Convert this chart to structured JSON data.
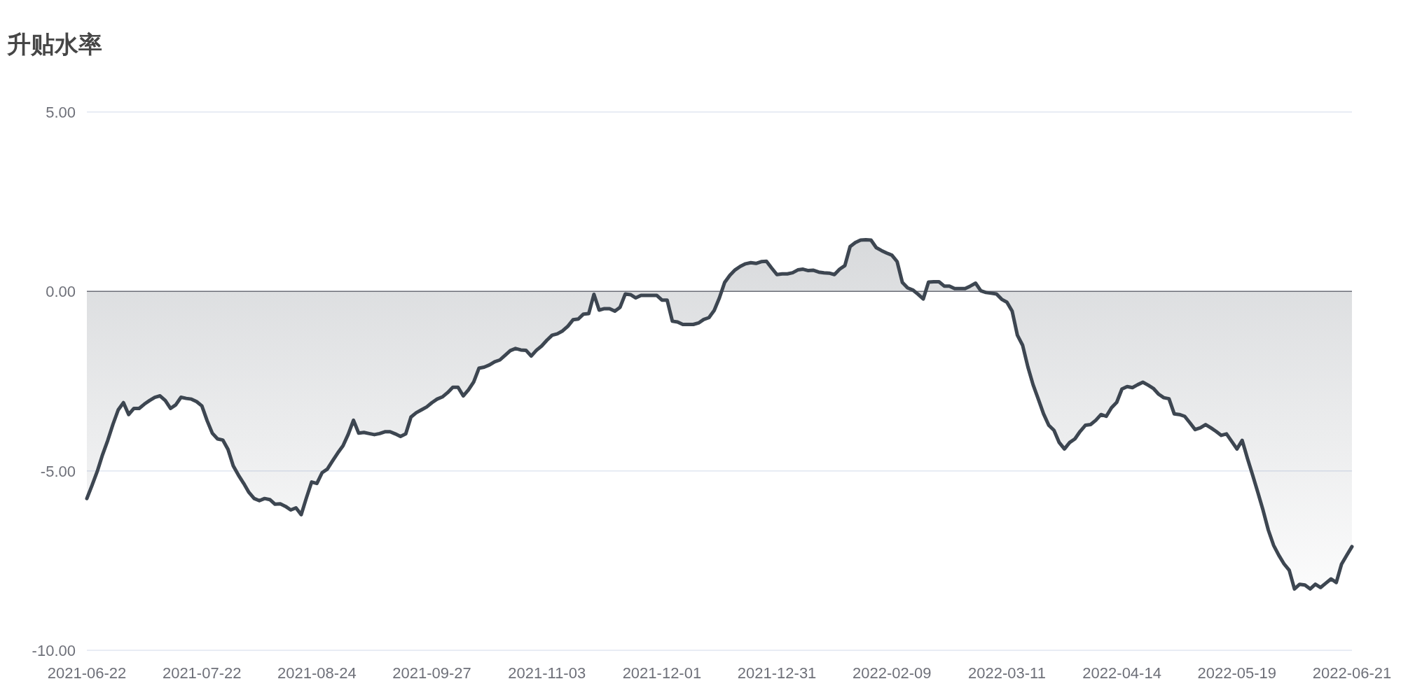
{
  "chart_data": {
    "type": "area",
    "title": "升贴水率",
    "categories": [
      "2021-06-22",
      null,
      null,
      null,
      null,
      null,
      null,
      null,
      null,
      null,
      null,
      null,
      null,
      null,
      null,
      null,
      null,
      null,
      null,
      null,
      null,
      null,
      "2021-07-22",
      null,
      null,
      null,
      null,
      null,
      null,
      null,
      null,
      null,
      null,
      null,
      null,
      null,
      null,
      null,
      null,
      null,
      null,
      null,
      null,
      null,
      "2021-08-24",
      null,
      null,
      null,
      null,
      null,
      null,
      null,
      null,
      null,
      null,
      null,
      null,
      null,
      null,
      null,
      null,
      null,
      null,
      null,
      null,
      null,
      "2021-09-27",
      null,
      null,
      null,
      null,
      null,
      null,
      null,
      null,
      null,
      null,
      null,
      null,
      null,
      null,
      null,
      null,
      null,
      null,
      null,
      null,
      null,
      "2021-11-03",
      null,
      null,
      null,
      null,
      null,
      null,
      null,
      null,
      null,
      null,
      null,
      null,
      null,
      null,
      null,
      null,
      null,
      null,
      null,
      null,
      null,
      "2021-12-01",
      null,
      null,
      null,
      null,
      null,
      null,
      null,
      null,
      null,
      null,
      null,
      null,
      null,
      null,
      null,
      null,
      null,
      null,
      null,
      null,
      null,
      "2021-12-31",
      null,
      null,
      null,
      null,
      null,
      null,
      null,
      null,
      null,
      null,
      null,
      null,
      null,
      null,
      null,
      null,
      null,
      null,
      null,
      null,
      null,
      "2022-02-09",
      null,
      null,
      null,
      null,
      null,
      null,
      null,
      null,
      null,
      null,
      null,
      null,
      null,
      null,
      null,
      null,
      null,
      null,
      null,
      null,
      null,
      "2022-03-11",
      null,
      null,
      null,
      null,
      null,
      null,
      null,
      null,
      null,
      null,
      null,
      null,
      null,
      null,
      null,
      null,
      null,
      null,
      null,
      null,
      null,
      "2022-04-14",
      null,
      null,
      null,
      null,
      null,
      null,
      null,
      null,
      null,
      null,
      null,
      null,
      null,
      null,
      null,
      null,
      null,
      null,
      null,
      null,
      null,
      "2022-05-19",
      null,
      null,
      null,
      null,
      null,
      null,
      null,
      null,
      null,
      null,
      null,
      null,
      null,
      null,
      null,
      null,
      null,
      null,
      null,
      null,
      null,
      "2022-06-21"
    ],
    "values": [
      -5.77,
      -5.4,
      -5.01,
      -4.55,
      -4.15,
      -3.7,
      -3.3,
      -3.1,
      -3.43,
      -3.26,
      -3.26,
      -3.14,
      -3.04,
      -2.95,
      -2.91,
      -3.04,
      -3.26,
      -3.16,
      -2.95,
      -2.98,
      -3.0,
      -3.07,
      -3.19,
      -3.6,
      -3.95,
      -4.11,
      -4.14,
      -4.4,
      -4.86,
      -5.12,
      -5.35,
      -5.6,
      -5.77,
      -5.83,
      -5.77,
      -5.8,
      -5.93,
      -5.92,
      -5.99,
      -6.09,
      -6.03,
      -6.22,
      -5.75,
      -5.31,
      -5.35,
      -5.05,
      -4.95,
      -4.72,
      -4.5,
      -4.3,
      -3.98,
      -3.59,
      -3.95,
      -3.93,
      -3.96,
      -3.99,
      -3.96,
      -3.91,
      -3.91,
      -3.97,
      -4.04,
      -3.97,
      -3.5,
      -3.38,
      -3.3,
      -3.22,
      -3.1,
      -3.0,
      -2.94,
      -2.82,
      -2.67,
      -2.67,
      -2.91,
      -2.74,
      -2.52,
      -2.14,
      -2.11,
      -2.05,
      -1.96,
      -1.91,
      -1.78,
      -1.65,
      -1.59,
      -1.63,
      -1.64,
      -1.8,
      -1.64,
      -1.52,
      -1.36,
      -1.22,
      -1.18,
      -1.1,
      -0.97,
      -0.79,
      -0.77,
      -0.63,
      -0.62,
      -0.08,
      -0.52,
      -0.48,
      -0.48,
      -0.55,
      -0.44,
      -0.07,
      -0.09,
      -0.18,
      -0.11,
      -0.11,
      -0.11,
      -0.11,
      -0.24,
      -0.24,
      -0.83,
      -0.85,
      -0.92,
      -0.92,
      -0.92,
      -0.88,
      -0.78,
      -0.73,
      -0.53,
      -0.18,
      0.25,
      0.45,
      0.6,
      0.7,
      0.77,
      0.8,
      0.78,
      0.83,
      0.84,
      0.65,
      0.47,
      0.49,
      0.49,
      0.52,
      0.6,
      0.62,
      0.58,
      0.59,
      0.54,
      0.52,
      0.51,
      0.47,
      0.62,
      0.72,
      1.25,
      1.36,
      1.43,
      1.44,
      1.43,
      1.22,
      1.14,
      1.07,
      1.01,
      0.83,
      0.25,
      0.1,
      0.04,
      -0.08,
      -0.21,
      0.26,
      0.27,
      0.27,
      0.15,
      0.15,
      0.08,
      0.08,
      0.08,
      0.15,
      0.23,
      0.02,
      -0.03,
      -0.05,
      -0.07,
      -0.22,
      -0.3,
      -0.55,
      -1.22,
      -1.5,
      -2.1,
      -2.6,
      -3.0,
      -3.41,
      -3.73,
      -3.87,
      -4.21,
      -4.39,
      -4.21,
      -4.11,
      -3.9,
      -3.73,
      -3.71,
      -3.59,
      -3.43,
      -3.48,
      -3.24,
      -3.09,
      -2.72,
      -2.65,
      -2.68,
      -2.6,
      -2.53,
      -2.61,
      -2.7,
      -2.86,
      -2.96,
      -2.99,
      -3.41,
      -3.43,
      -3.48,
      -3.66,
      -3.85,
      -3.8,
      -3.71,
      -3.8,
      -3.9,
      -4.01,
      -3.97,
      -4.18,
      -4.39,
      -4.15,
      -4.65,
      -5.12,
      -5.6,
      -6.1,
      -6.65,
      -7.07,
      -7.35,
      -7.59,
      -7.77,
      -8.29,
      -8.16,
      -8.18,
      -8.29,
      -8.16,
      -8.25,
      -8.13,
      -8.01,
      -8.11,
      -7.6,
      -7.35,
      -7.11
    ],
    "color": "#3d4651",
    "ylim": [
      -10,
      5
    ],
    "yticks": [
      {
        "value": 5,
        "label": "5.00"
      },
      {
        "value": 0,
        "label": "0.00"
      },
      {
        "value": -5,
        "label": "-5.00"
      },
      {
        "value": -10,
        "label": "-10.00"
      }
    ],
    "grid": "y"
  }
}
